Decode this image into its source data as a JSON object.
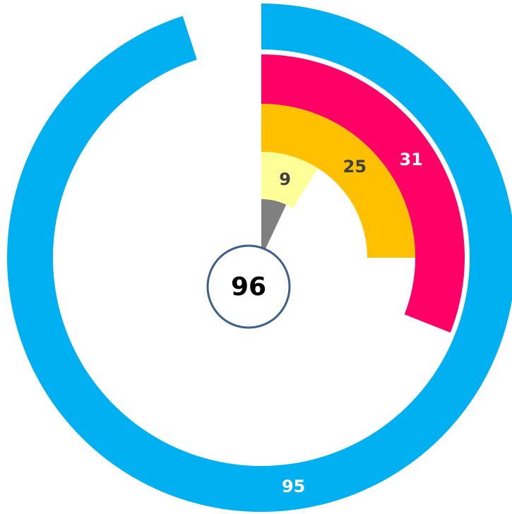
{
  "chart_data": {
    "type": "radial_bar",
    "ylim": [
      0,
      100
    ],
    "center_label": "96",
    "series": [
      {
        "color": "#00b0f0",
        "values": [
          95
        ]
      },
      {
        "color": "#ff0066",
        "values": [
          31
        ]
      },
      {
        "color": "#ffc000",
        "values": [
          25
        ]
      },
      {
        "color": "#ffff99",
        "values": [
          9
        ]
      },
      {
        "color": "#808080",
        "values": [
          7
        ]
      }
    ]
  }
}
